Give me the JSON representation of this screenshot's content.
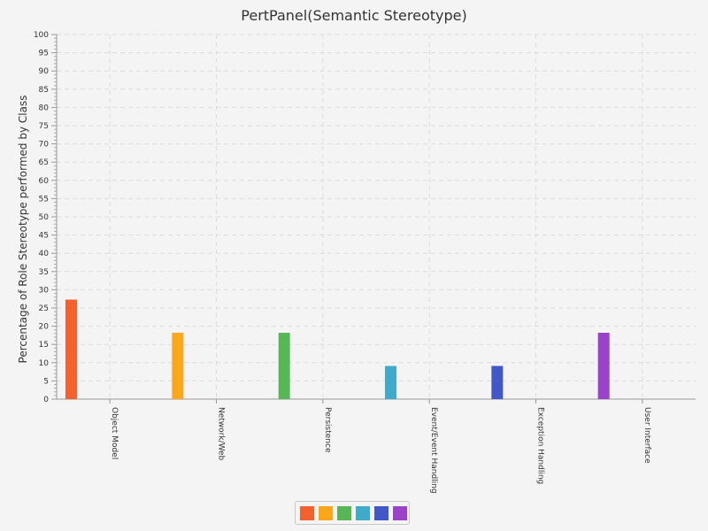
{
  "chart_data": {
    "type": "bar",
    "title": "PertPanel(Semantic Stereotype)",
    "xlabel": "",
    "ylabel": "Percentage of Role Stereotype performed by Class",
    "ylim": [
      0,
      100
    ],
    "ytick_step": 5,
    "grid": true,
    "legend_position": "bottom",
    "categories": [
      "Object Model",
      "Network/Web",
      "Persistence",
      "Event/Event Handling",
      "Exception Handling",
      "User Interface"
    ],
    "values": [
      27.3,
      18.2,
      18.2,
      9.1,
      9.1,
      18.2
    ],
    "colors": [
      "#f3622d",
      "#fba71b",
      "#57b757",
      "#41a9c9",
      "#4258c9",
      "#9a42c8"
    ],
    "legend_entries": [
      "",
      "",
      "",
      "",
      "",
      ""
    ]
  }
}
